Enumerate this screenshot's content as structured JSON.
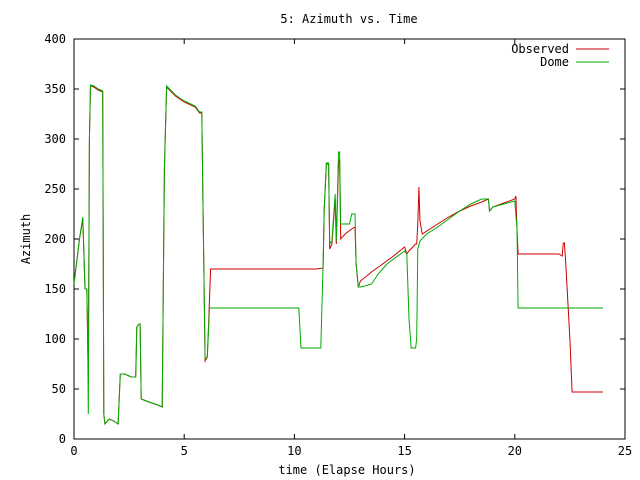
{
  "chart_data": {
    "type": "line",
    "title": "5: Azimuth vs. Time",
    "xlabel": "time (Elapse Hours)",
    "ylabel": "Azimuth",
    "xlim": [
      0,
      25
    ],
    "ylim": [
      0,
      400
    ],
    "xticks": [
      0,
      5,
      10,
      15,
      20,
      25
    ],
    "yticks": [
      0,
      50,
      100,
      150,
      200,
      250,
      300,
      350,
      400
    ],
    "grid": false,
    "legend": "top-right",
    "series": [
      {
        "name": "Observed",
        "color": "#cc0000",
        "points": [
          [
            0,
            155
          ],
          [
            0.25,
            200
          ],
          [
            0.4,
            220
          ],
          [
            0.5,
            150
          ],
          [
            0.58,
            150
          ],
          [
            0.65,
            60
          ],
          [
            0.7,
            300
          ],
          [
            0.75,
            353
          ],
          [
            0.9,
            352
          ],
          [
            1.1,
            349
          ],
          [
            1.3,
            347
          ],
          [
            1.35,
            25
          ],
          [
            1.4,
            15
          ],
          [
            1.6,
            20
          ],
          [
            1.8,
            18
          ],
          [
            2.0,
            15
          ],
          [
            2.1,
            65
          ],
          [
            2.3,
            65
          ],
          [
            2.6,
            62
          ],
          [
            2.8,
            62
          ],
          [
            2.85,
            112
          ],
          [
            2.95,
            115
          ],
          [
            3.0,
            115
          ],
          [
            3.05,
            40
          ],
          [
            3.4,
            37
          ],
          [
            3.8,
            34
          ],
          [
            4.0,
            32
          ],
          [
            4.1,
            270
          ],
          [
            4.2,
            352
          ],
          [
            4.6,
            343
          ],
          [
            5.0,
            337
          ],
          [
            5.5,
            332
          ],
          [
            5.7,
            326
          ],
          [
            5.8,
            326
          ],
          [
            5.85,
            240
          ],
          [
            5.95,
            78
          ],
          [
            6.05,
            82
          ],
          [
            6.1,
            110
          ],
          [
            6.2,
            170
          ],
          [
            6.3,
            170
          ],
          [
            8.0,
            170
          ],
          [
            10.0,
            170
          ],
          [
            11.0,
            170
          ],
          [
            11.3,
            171
          ],
          [
            11.35,
            230
          ],
          [
            11.45,
            275
          ],
          [
            11.55,
            275
          ],
          [
            11.6,
            190
          ],
          [
            11.7,
            195
          ],
          [
            11.85,
            240
          ],
          [
            11.9,
            195
          ],
          [
            12.0,
            275
          ],
          [
            12.05,
            280
          ],
          [
            12.1,
            200
          ],
          [
            12.3,
            205
          ],
          [
            12.6,
            210
          ],
          [
            12.75,
            212
          ],
          [
            12.8,
            175
          ],
          [
            12.9,
            152
          ],
          [
            13.0,
            158
          ],
          [
            13.5,
            167
          ],
          [
            14.0,
            175
          ],
          [
            14.5,
            183
          ],
          [
            15.0,
            192
          ],
          [
            15.1,
            185
          ],
          [
            15.2,
            188
          ],
          [
            15.5,
            195
          ],
          [
            15.55,
            195
          ],
          [
            15.6,
            215
          ],
          [
            15.65,
            252
          ],
          [
            15.7,
            218
          ],
          [
            15.8,
            205
          ],
          [
            16.5,
            215
          ],
          [
            17.0,
            222
          ],
          [
            17.5,
            228
          ],
          [
            18.0,
            233
          ],
          [
            18.5,
            237
          ],
          [
            18.8,
            240
          ],
          [
            18.85,
            228
          ],
          [
            19.0,
            232
          ],
          [
            19.5,
            236
          ],
          [
            20.0,
            240
          ],
          [
            20.05,
            243
          ],
          [
            20.1,
            210
          ],
          [
            20.15,
            185
          ],
          [
            21.0,
            185
          ],
          [
            21.5,
            185
          ],
          [
            22.0,
            185
          ],
          [
            22.15,
            183
          ],
          [
            22.2,
            196
          ],
          [
            22.25,
            196
          ],
          [
            22.3,
            180
          ],
          [
            22.5,
            100
          ],
          [
            22.6,
            47
          ],
          [
            23.0,
            47
          ],
          [
            24.0,
            47
          ]
        ]
      },
      {
        "name": "Dome",
        "color": "#00aa00",
        "points": [
          [
            0,
            155
          ],
          [
            0.25,
            200
          ],
          [
            0.4,
            222
          ],
          [
            0.5,
            150
          ],
          [
            0.58,
            150
          ],
          [
            0.62,
            100
          ],
          [
            0.65,
            25
          ],
          [
            0.7,
            300
          ],
          [
            0.75,
            354
          ],
          [
            0.9,
            353
          ],
          [
            1.1,
            350
          ],
          [
            1.3,
            348
          ],
          [
            1.35,
            25
          ],
          [
            1.4,
            15
          ],
          [
            1.6,
            20
          ],
          [
            1.8,
            18
          ],
          [
            2.0,
            15
          ],
          [
            2.1,
            65
          ],
          [
            2.3,
            65
          ],
          [
            2.6,
            62
          ],
          [
            2.8,
            62
          ],
          [
            2.85,
            112
          ],
          [
            2.95,
            115
          ],
          [
            3.0,
            115
          ],
          [
            3.05,
            40
          ],
          [
            3.4,
            37
          ],
          [
            3.8,
            34
          ],
          [
            4.0,
            32
          ],
          [
            4.1,
            270
          ],
          [
            4.2,
            353
          ],
          [
            4.6,
            344
          ],
          [
            5.0,
            338
          ],
          [
            5.5,
            333
          ],
          [
            5.7,
            327
          ],
          [
            5.8,
            327
          ],
          [
            5.85,
            240
          ],
          [
            5.95,
            80
          ],
          [
            6.05,
            82
          ],
          [
            6.15,
            131
          ],
          [
            8.0,
            131
          ],
          [
            10.0,
            131
          ],
          [
            10.2,
            131
          ],
          [
            10.3,
            91
          ],
          [
            11.0,
            91
          ],
          [
            11.2,
            91
          ],
          [
            11.3,
            175
          ],
          [
            11.35,
            230
          ],
          [
            11.45,
            276
          ],
          [
            11.55,
            276
          ],
          [
            11.6,
            195
          ],
          [
            11.7,
            198
          ],
          [
            11.85,
            245
          ],
          [
            11.9,
            198
          ],
          [
            12.0,
            287
          ],
          [
            12.05,
            287
          ],
          [
            12.1,
            215
          ],
          [
            12.5,
            215
          ],
          [
            12.6,
            225
          ],
          [
            12.75,
            225
          ],
          [
            12.8,
            175
          ],
          [
            12.9,
            152
          ],
          [
            13.0,
            152
          ],
          [
            13.2,
            153
          ],
          [
            13.5,
            155
          ],
          [
            13.8,
            165
          ],
          [
            14.2,
            175
          ],
          [
            14.5,
            180
          ],
          [
            15.0,
            188
          ],
          [
            15.1,
            185
          ],
          [
            15.2,
            120
          ],
          [
            15.3,
            91
          ],
          [
            15.5,
            91
          ],
          [
            15.55,
            100
          ],
          [
            15.6,
            190
          ],
          [
            15.7,
            198
          ],
          [
            16.0,
            205
          ],
          [
            16.5,
            212
          ],
          [
            17.0,
            220
          ],
          [
            17.5,
            228
          ],
          [
            18.0,
            235
          ],
          [
            18.5,
            240
          ],
          [
            18.8,
            240
          ],
          [
            18.85,
            228
          ],
          [
            19.0,
            232
          ],
          [
            19.5,
            235
          ],
          [
            20.0,
            238
          ],
          [
            20.1,
            210
          ],
          [
            20.15,
            131
          ],
          [
            21.0,
            131
          ],
          [
            22.0,
            131
          ],
          [
            23.0,
            131
          ],
          [
            24.0,
            131
          ]
        ]
      }
    ]
  }
}
